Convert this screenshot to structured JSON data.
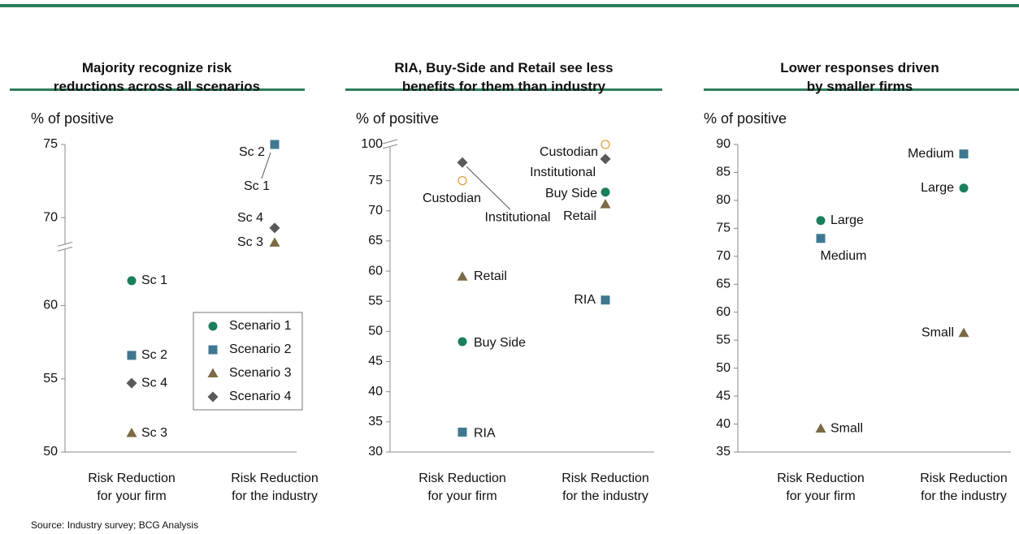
{
  "source": "Source: Industry survey; BCG Analysis",
  "chart_data": [
    {
      "type": "scatter",
      "title": "Majority recognize risk\nreductions across all scenarios",
      "ylabel": "% of positive",
      "categories": [
        "Risk Reduction\nfor your firm",
        "Risk Reduction\nfor the industry"
      ],
      "ylim": [
        50,
        75
      ],
      "yticks": [
        50,
        55,
        60,
        70,
        75
      ],
      "ybreak": [
        64,
        68
      ],
      "legend": "lower right",
      "series": [
        {
          "name": "Scenario 1",
          "color": "#19805a",
          "marker": "circle",
          "values": [
            61.7,
            75
          ],
          "labels": [
            "Sc 1",
            "Sc 1"
          ]
        },
        {
          "name": "Scenario 2",
          "color": "#3f7890",
          "marker": "square",
          "values": [
            56.6,
            75
          ],
          "labels": [
            "Sc 2",
            "Sc 2"
          ]
        },
        {
          "name": "Scenario 3",
          "color": "#7b6a45",
          "marker": "triangle",
          "values": [
            51.3,
            68.3
          ],
          "labels": [
            "Sc 3",
            "Sc 3"
          ]
        },
        {
          "name": "Scenario 4",
          "color": "#595959",
          "marker": "diamond",
          "values": [
            54.7,
            69.3
          ],
          "labels": [
            "Sc 4",
            "Sc 4"
          ]
        }
      ]
    },
    {
      "type": "scatter",
      "title": "RIA, Buy-Side and Retail see less\nbenefits for them than industry",
      "ylabel": "% of positive",
      "categories": [
        "Risk Reduction\nfor your firm",
        "Risk Reduction\nfor the industry"
      ],
      "ylim": [
        30,
        100
      ],
      "yticks": [
        30,
        35,
        40,
        45,
        50,
        55,
        60,
        65,
        70,
        75,
        100
      ],
      "ybreak": [
        81,
        100
      ],
      "series": [
        {
          "name": "Custodian",
          "color": "#e0a040",
          "marker": "open-circle",
          "values": [
            75,
            100
          ]
        },
        {
          "name": "Institutional",
          "color": "#595959",
          "marker": "diamond",
          "values": [
            78,
            78.6
          ]
        },
        {
          "name": "Retail",
          "color": "#7b6a45",
          "marker": "triangle",
          "values": [
            59.1,
            71.1
          ]
        },
        {
          "name": "Buy Side",
          "color": "#19805a",
          "marker": "circle",
          "values": [
            48.3,
            73.1
          ]
        },
        {
          "name": "RIA",
          "color": "#3f7890",
          "marker": "square",
          "values": [
            33.3,
            55.2
          ]
        }
      ]
    },
    {
      "type": "scatter",
      "title": "Lower responses driven\nby smaller firms",
      "ylabel": "% of positive",
      "categories": [
        "Risk Reduction\nfor your firm",
        "Risk Reduction\nfor the industry"
      ],
      "ylim": [
        35,
        90
      ],
      "yticks": [
        35,
        40,
        45,
        50,
        55,
        60,
        65,
        70,
        75,
        80,
        85,
        90
      ],
      "series": [
        {
          "name": "Large",
          "color": "#19805a",
          "marker": "circle",
          "values": [
            76.4,
            82.2
          ]
        },
        {
          "name": "Medium",
          "color": "#3f7890",
          "marker": "square",
          "values": [
            73.2,
            88.3
          ]
        },
        {
          "name": "Small",
          "color": "#7b6a45",
          "marker": "triangle",
          "values": [
            39.2,
            56.3
          ]
        }
      ]
    }
  ]
}
